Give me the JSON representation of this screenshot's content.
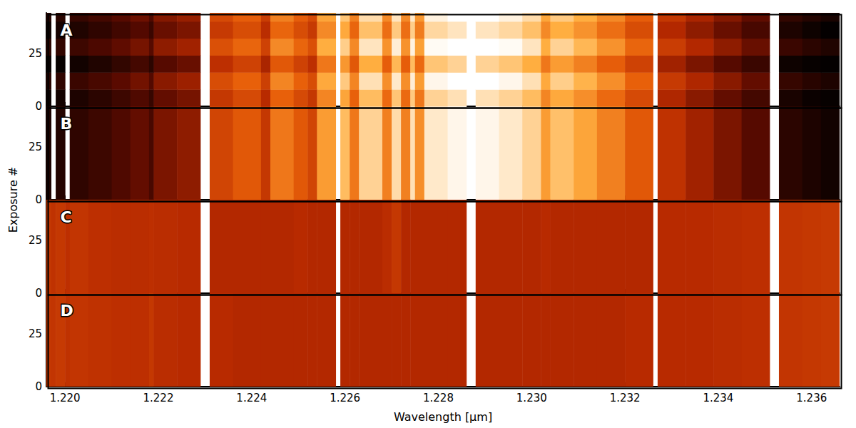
{
  "chart_data": {
    "type": "heatmap",
    "xlabel": "Wavelength [µm]",
    "ylabel": "Exposure #",
    "xlim": [
      1.2196,
      1.2366
    ],
    "xticks": [
      {
        "value": 1.22,
        "label": "1.220"
      },
      {
        "value": 1.222,
        "label": "1.222"
      },
      {
        "value": 1.224,
        "label": "1.224"
      },
      {
        "value": 1.226,
        "label": "1.226"
      },
      {
        "value": 1.228,
        "label": "1.228"
      },
      {
        "value": 1.23,
        "label": "1.230"
      },
      {
        "value": 1.232,
        "label": "1.232"
      },
      {
        "value": 1.234,
        "label": "1.234"
      },
      {
        "value": 1.236,
        "label": "1.236"
      }
    ],
    "ylim": [
      0,
      44
    ],
    "yticks": [
      0,
      25
    ],
    "zlim": [
      0,
      1
    ],
    "x_edges": [
      1.2196,
      1.2197,
      1.2198,
      1.22,
      1.2201,
      1.2205,
      1.221,
      1.2214,
      1.2218,
      1.2219,
      1.2224,
      1.2229,
      1.2231,
      1.2236,
      1.2242,
      1.2244,
      1.2249,
      1.2252,
      1.2254,
      1.2258,
      1.2259,
      1.2261,
      1.2263,
      1.2268,
      1.227,
      1.2272,
      1.2274,
      1.2275,
      1.2277,
      1.2282,
      1.2286,
      1.2288,
      1.2293,
      1.2298,
      1.2302,
      1.2304,
      1.2309,
      1.2314,
      1.232,
      1.2326,
      1.2327,
      1.2333,
      1.2339,
      1.2345,
      1.2351,
      1.2353,
      1.2358,
      1.2362,
      1.2366
    ],
    "panels": [
      {
        "label": "A",
        "exposure_edges": [
          0,
          8,
          16,
          24,
          32,
          40,
          44
        ],
        "cells": [
          [
            0.03,
            null,
            0.05,
            null,
            0.08,
            0.12,
            0.17,
            0.22,
            0.15,
            0.27,
            0.31,
            null,
            0.5,
            0.57,
            0.45,
            0.65,
            0.57,
            0.5,
            0.73,
            null,
            0.8,
            0.65,
            0.85,
            0.67,
            0.87,
            0.67,
            0.88,
            0.7,
            0.9,
            0.93,
            null,
            0.93,
            0.9,
            0.85,
            0.73,
            0.81,
            0.75,
            0.67,
            0.57,
            null,
            0.43,
            0.35,
            0.27,
            0.19,
            null,
            0.07,
            0.03,
            0.02
          ],
          [
            0.11,
            null,
            0.13,
            null,
            0.16,
            0.2,
            0.25,
            0.3,
            0.23,
            0.35,
            0.39,
            null,
            0.58,
            0.65,
            0.53,
            0.73,
            0.65,
            0.58,
            0.81,
            null,
            0.88,
            0.73,
            0.93,
            0.75,
            0.95,
            0.75,
            0.96,
            0.78,
            0.98,
            1.0,
            null,
            1.0,
            0.98,
            0.93,
            0.81,
            0.89,
            0.83,
            0.75,
            0.65,
            null,
            0.51,
            0.43,
            0.35,
            0.27,
            null,
            0.15,
            0.11,
            0.08
          ],
          [
            0.02,
            null,
            0.02,
            null,
            0.05,
            0.09,
            0.14,
            0.19,
            0.12,
            0.24,
            0.28,
            null,
            0.47,
            0.54,
            0.42,
            0.62,
            0.54,
            0.47,
            0.7,
            null,
            0.77,
            0.62,
            0.82,
            0.64,
            0.84,
            0.64,
            0.85,
            0.67,
            0.87,
            0.9,
            null,
            0.9,
            0.87,
            0.82,
            0.7,
            0.78,
            0.72,
            0.64,
            0.54,
            null,
            0.4,
            0.32,
            0.24,
            0.16,
            null,
            0.04,
            0.02,
            0.01
          ],
          [
            0.12,
            null,
            0.14,
            null,
            0.17,
            0.21,
            0.26,
            0.31,
            0.24,
            0.36,
            0.4,
            null,
            0.59,
            0.66,
            0.54,
            0.74,
            0.66,
            0.59,
            0.82,
            null,
            0.89,
            0.74,
            0.94,
            0.76,
            0.96,
            0.76,
            0.97,
            0.79,
            0.99,
            1.0,
            null,
            1.0,
            0.99,
            0.94,
            0.82,
            0.9,
            0.84,
            0.76,
            0.66,
            null,
            0.52,
            0.44,
            0.36,
            0.28,
            null,
            0.16,
            0.12,
            0.09
          ],
          [
            0.04,
            null,
            0.06,
            null,
            0.09,
            0.13,
            0.18,
            0.23,
            0.16,
            0.28,
            0.32,
            null,
            0.51,
            0.58,
            0.46,
            0.66,
            0.58,
            0.51,
            0.74,
            null,
            0.81,
            0.66,
            0.86,
            0.68,
            0.88,
            0.68,
            0.89,
            0.71,
            0.91,
            0.94,
            null,
            0.94,
            0.91,
            0.86,
            0.74,
            0.82,
            0.76,
            0.68,
            0.58,
            null,
            0.44,
            0.36,
            0.28,
            0.2,
            null,
            0.08,
            0.04,
            0.01
          ],
          [
            0.1,
            null,
            0.12,
            null,
            0.15,
            0.19,
            0.24,
            0.29,
            0.22,
            0.34,
            0.38,
            null,
            0.57,
            0.64,
            0.52,
            0.72,
            0.64,
            0.57,
            0.8,
            null,
            0.87,
            0.72,
            0.92,
            0.74,
            0.94,
            0.74,
            0.95,
            0.77,
            0.97,
            1.0,
            null,
            1.0,
            0.97,
            0.92,
            0.8,
            0.88,
            0.82,
            0.74,
            0.64,
            null,
            0.5,
            0.42,
            0.34,
            0.26,
            null,
            0.14,
            0.1,
            0.07
          ]
        ]
      },
      {
        "label": "B",
        "exposure_edges": [
          0,
          44
        ],
        "cells": [
          [
            0.08,
            null,
            0.1,
            null,
            0.13,
            0.17,
            0.22,
            0.27,
            0.2,
            0.32,
            0.36,
            null,
            0.55,
            0.62,
            0.5,
            0.7,
            0.62,
            0.55,
            0.78,
            null,
            0.85,
            0.7,
            0.9,
            0.72,
            0.92,
            0.72,
            0.93,
            0.75,
            0.95,
            0.98,
            null,
            0.98,
            0.95,
            0.9,
            0.78,
            0.86,
            0.8,
            0.72,
            0.62,
            null,
            0.48,
            0.4,
            0.32,
            0.24,
            null,
            0.12,
            0.08,
            0.05
          ]
        ]
      },
      {
        "label": "C",
        "exposure_edges": [
          0,
          44
        ],
        "cells": [
          [
            0.5,
            0.48,
            0.5,
            0.47,
            0.49,
            0.47,
            0.46,
            0.46,
            0.47,
            0.46,
            0.45,
            null,
            0.44,
            0.44,
            0.44,
            0.44,
            0.45,
            0.44,
            0.44,
            null,
            0.44,
            0.44,
            0.44,
            0.46,
            0.5,
            0.44,
            0.44,
            0.44,
            0.44,
            0.44,
            null,
            0.44,
            0.44,
            0.44,
            0.45,
            0.44,
            0.44,
            0.44,
            0.44,
            null,
            0.45,
            0.45,
            0.46,
            0.47,
            null,
            0.49,
            0.5,
            0.51
          ]
        ]
      },
      {
        "label": "D",
        "exposure_edges": [
          0,
          44
        ],
        "cells": [
          [
            0.5,
            0.49,
            0.51,
            0.48,
            0.49,
            0.48,
            0.47,
            0.47,
            0.5,
            0.46,
            0.45,
            null,
            0.45,
            0.44,
            0.44,
            0.44,
            0.44,
            0.44,
            0.44,
            null,
            0.44,
            0.44,
            0.44,
            0.44,
            0.44,
            0.44,
            0.44,
            0.44,
            0.44,
            0.44,
            null,
            0.44,
            0.44,
            0.44,
            0.44,
            0.44,
            0.44,
            0.44,
            0.45,
            null,
            0.45,
            0.45,
            0.46,
            0.47,
            null,
            0.49,
            0.5,
            0.51
          ]
        ]
      }
    ]
  }
}
